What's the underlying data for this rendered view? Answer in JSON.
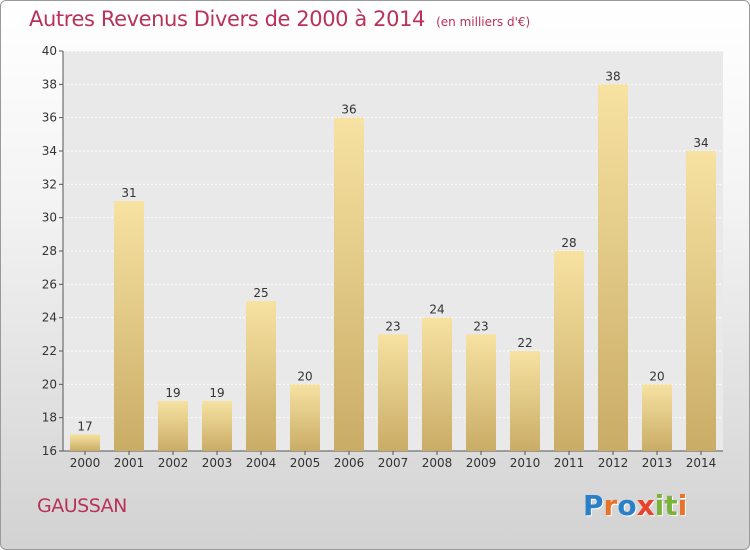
{
  "header": {
    "title": "Autres Revenus Divers de 2000 à 2014",
    "subtitle": "(en milliers d'€)"
  },
  "footer": {
    "location": "GAUSSAN",
    "brand_letters": [
      "P",
      "r",
      "o",
      "x",
      "i",
      "t",
      "i"
    ],
    "brand_colors": [
      "#2a7fc9",
      "#e8742a",
      "#2a7fc9",
      "#e8422a",
      "#7ab33a",
      "#7ab33a",
      "#e8742a"
    ],
    "title_color": "#b8325a"
  },
  "chart_data": {
    "type": "bar",
    "title": "Autres Revenus Divers de 2000 à 2014",
    "subtitle": "(en milliers d'€)",
    "categories": [
      "2000",
      "2001",
      "2002",
      "2003",
      "2004",
      "2005",
      "2006",
      "2007",
      "2008",
      "2009",
      "2010",
      "2011",
      "2012",
      "2013",
      "2014"
    ],
    "values": [
      17,
      31,
      19,
      19,
      25,
      20,
      36,
      23,
      24,
      23,
      22,
      28,
      38,
      20,
      34
    ],
    "ylim": [
      16,
      40
    ],
    "yticks": [
      16,
      18,
      20,
      22,
      24,
      26,
      28,
      30,
      32,
      34,
      36,
      38,
      40
    ],
    "grid": true,
    "bar_color_light": "#f7e2a2",
    "bar_color_dark": "#c9ac66"
  }
}
